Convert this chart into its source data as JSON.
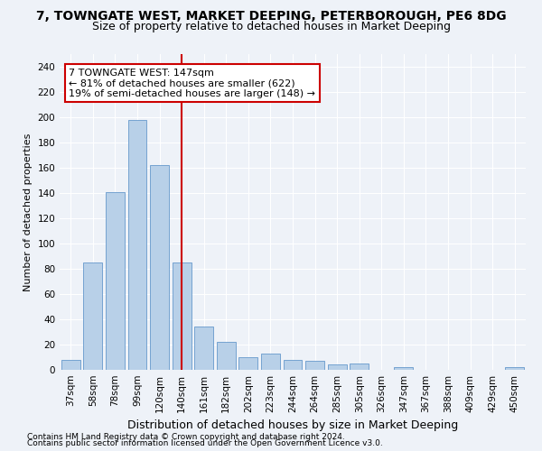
{
  "title": "7, TOWNGATE WEST, MARKET DEEPING, PETERBOROUGH, PE6 8DG",
  "subtitle": "Size of property relative to detached houses in Market Deeping",
  "xlabel": "Distribution of detached houses by size in Market Deeping",
  "ylabel": "Number of detached properties",
  "bar_color": "#b8d0e8",
  "bar_edge_color": "#6699cc",
  "categories": [
    "37sqm",
    "58sqm",
    "78sqm",
    "99sqm",
    "120sqm",
    "140sqm",
    "161sqm",
    "182sqm",
    "202sqm",
    "223sqm",
    "244sqm",
    "264sqm",
    "285sqm",
    "305sqm",
    "326sqm",
    "347sqm",
    "367sqm",
    "388sqm",
    "409sqm",
    "429sqm",
    "450sqm"
  ],
  "values": [
    8,
    85,
    141,
    198,
    162,
    85,
    34,
    22,
    10,
    13,
    8,
    7,
    4,
    5,
    0,
    2,
    0,
    0,
    0,
    0,
    2
  ],
  "ylim": [
    0,
    250
  ],
  "yticks": [
    0,
    20,
    40,
    60,
    80,
    100,
    120,
    140,
    160,
    180,
    200,
    220,
    240
  ],
  "redline_x": 5.0,
  "annotation_title": "7 TOWNGATE WEST: 147sqm",
  "annotation_line1": "← 81% of detached houses are smaller (622)",
  "annotation_line2": "19% of semi-detached houses are larger (148) →",
  "annotation_box_color": "#ffffff",
  "annotation_box_edge": "#cc0000",
  "redline_color": "#cc0000",
  "footer1": "Contains HM Land Registry data © Crown copyright and database right 2024.",
  "footer2": "Contains public sector information licensed under the Open Government Licence v3.0.",
  "background_color": "#eef2f8",
  "grid_color": "#ffffff",
  "title_fontsize": 10,
  "subtitle_fontsize": 9,
  "xlabel_fontsize": 9,
  "ylabel_fontsize": 8,
  "tick_fontsize": 7.5,
  "annotation_fontsize": 8,
  "footer_fontsize": 6.5
}
